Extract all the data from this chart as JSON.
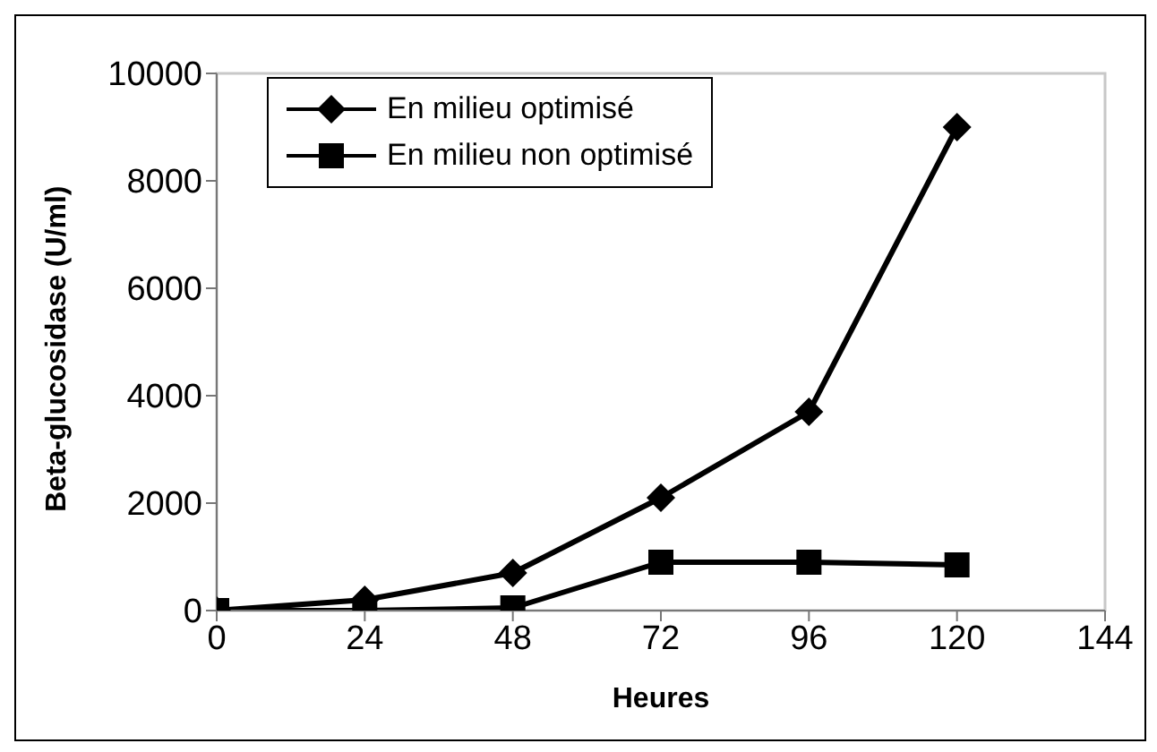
{
  "chart_data": {
    "type": "line",
    "xlabel": "Heures",
    "ylabel": "Beta-glucosidase (U/ml)",
    "x": [
      0,
      24,
      48,
      72,
      96,
      120
    ],
    "series": [
      {
        "name": "En milieu optimisé",
        "color": "#000000",
        "marker": "diamond",
        "values": [
          0,
          200,
          700,
          2100,
          3700,
          9000
        ]
      },
      {
        "name": "En milieu non optimisé",
        "color": "#000000",
        "marker": "square",
        "values": [
          0,
          0,
          50,
          900,
          900,
          850
        ]
      }
    ],
    "xlim": [
      0,
      144
    ],
    "xticks": [
      0,
      24,
      48,
      72,
      96,
      120,
      144
    ],
    "ylim": [
      0,
      10000
    ],
    "yticks": [
      0,
      2000,
      4000,
      6000,
      8000,
      10000
    ],
    "grid": false,
    "legend": "top left",
    "line_style": "solid"
  }
}
